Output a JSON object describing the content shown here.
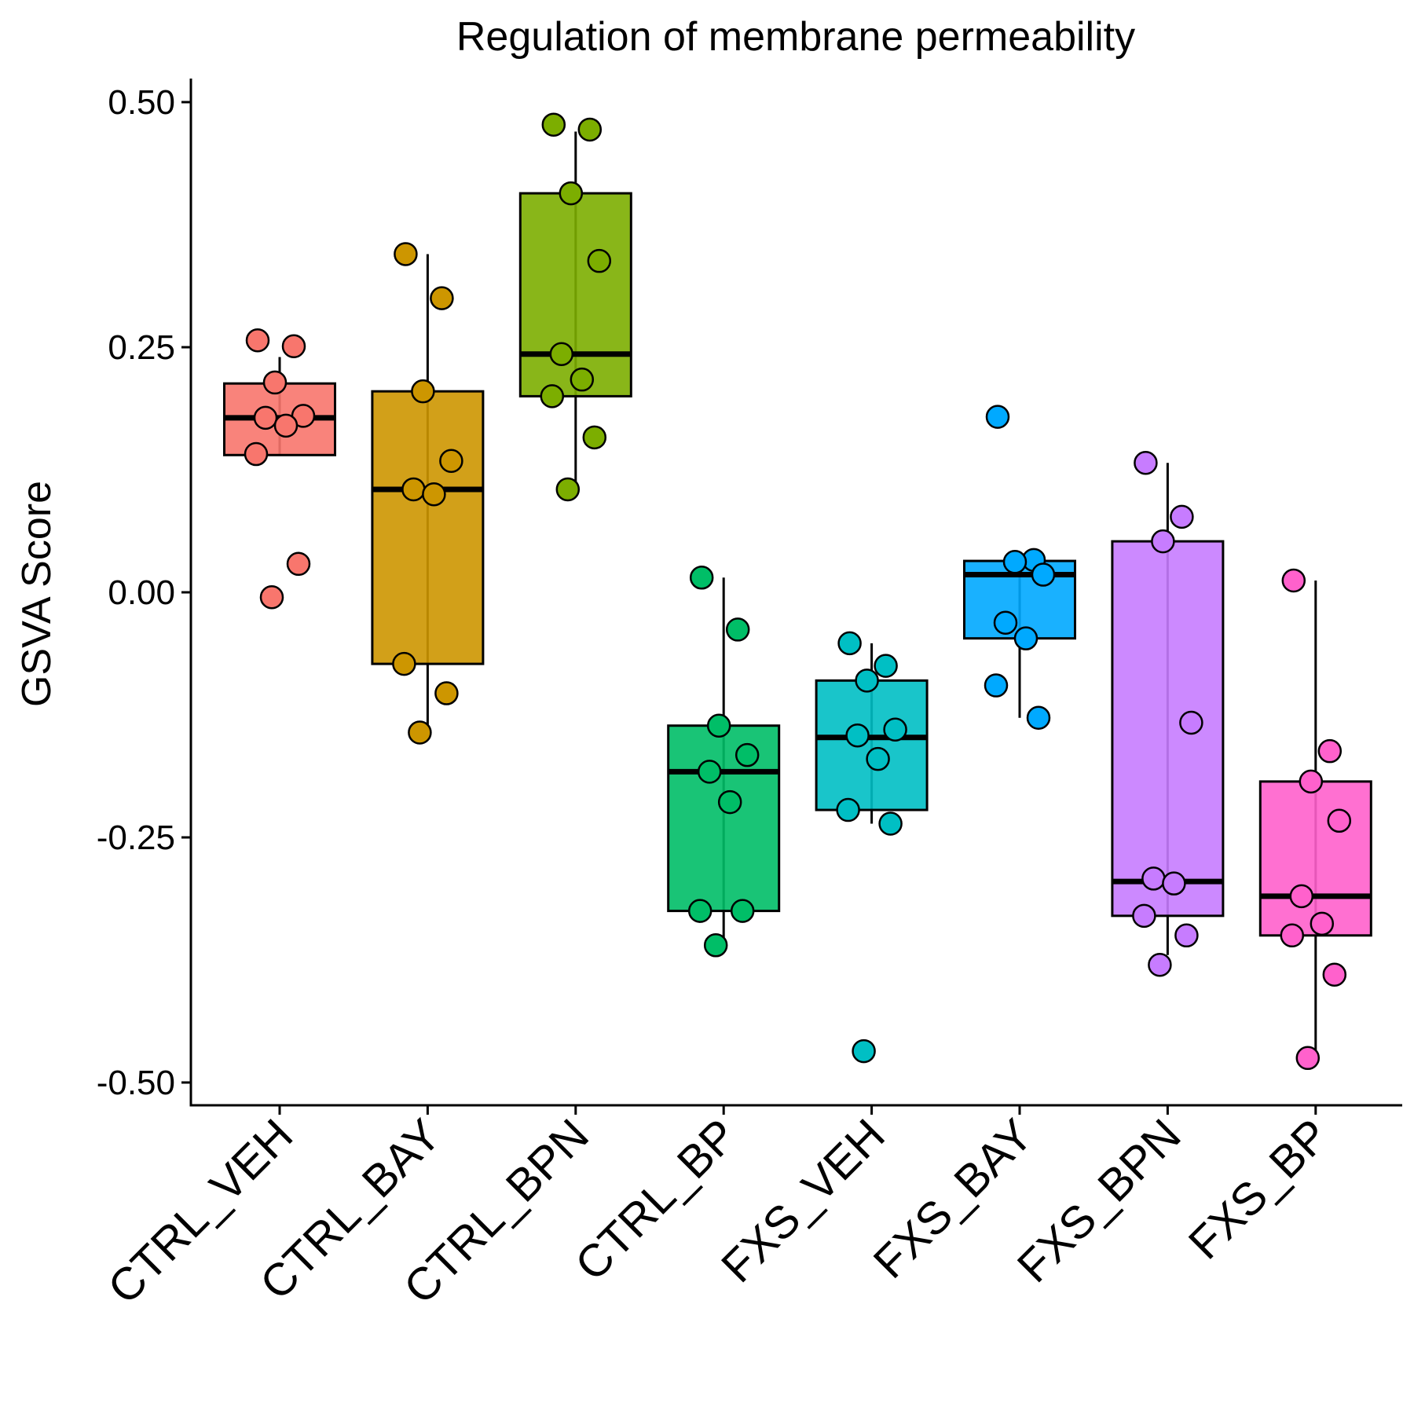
{
  "chart_data": {
    "type": "boxplot",
    "title": "Regulation of membrane permeability",
    "xlabel": "",
    "ylabel": "GSVA Score",
    "ylim": [
      -0.525,
      0.525
    ],
    "yticks": [
      0.5,
      0.25,
      0.0,
      -0.25,
      -0.5
    ],
    "ytick_labels": [
      "0.50",
      "0.25",
      "0.00",
      "-0.25",
      "-0.50"
    ],
    "grid": false,
    "legend": "none",
    "categories": [
      "CTRL_VEH",
      "CTRL_BAY",
      "CTRL_BPN",
      "CTRL_BP",
      "FXS_VEH",
      "FXS_BAY",
      "FXS_BPN",
      "FXS_BP"
    ],
    "colors": [
      "#F8766D",
      "#CD9600",
      "#7CAE00",
      "#00BE67",
      "#00BFC4",
      "#00A9FF",
      "#C77CFF",
      "#FF61CC"
    ],
    "boxes": [
      {
        "whisker_low": 0.14,
        "q1": 0.14,
        "median": 0.178,
        "q3": 0.213,
        "whisker_high": 0.24
      },
      {
        "whisker_low": -0.143,
        "q1": -0.073,
        "median": 0.105,
        "q3": 0.205,
        "whisker_high": 0.345
      },
      {
        "whisker_low": 0.105,
        "q1": 0.2,
        "median": 0.243,
        "q3": 0.407,
        "whisker_high": 0.47
      },
      {
        "whisker_low": -0.36,
        "q1": -0.325,
        "median": -0.183,
        "q3": -0.136,
        "whisker_high": 0.015
      },
      {
        "whisker_low": -0.236,
        "q1": -0.222,
        "median": -0.148,
        "q3": -0.09,
        "whisker_high": -0.052
      },
      {
        "whisker_low": -0.128,
        "q1": -0.047,
        "median": 0.018,
        "q3": 0.032,
        "whisker_high": 0.033
      },
      {
        "whisker_low": -0.37,
        "q1": -0.33,
        "median": -0.295,
        "q3": 0.052,
        "whisker_high": 0.132
      },
      {
        "whisker_low": -0.475,
        "q1": -0.35,
        "median": -0.31,
        "q3": -0.193,
        "whisker_high": 0.012
      }
    ],
    "points": [
      [
        0.257,
        0.251,
        0.214,
        0.18,
        0.178,
        0.17,
        0.141,
        0.029,
        -0.005
      ],
      [
        0.345,
        0.3,
        0.205,
        0.134,
        0.105,
        0.1,
        -0.073,
        -0.103,
        -0.143
      ],
      [
        0.477,
        0.472,
        0.407,
        0.338,
        0.243,
        0.217,
        0.2,
        0.158,
        0.105
      ],
      [
        0.015,
        -0.038,
        -0.136,
        -0.166,
        -0.183,
        -0.214,
        -0.325,
        -0.325,
        -0.36
      ],
      [
        -0.052,
        -0.075,
        -0.09,
        -0.14,
        -0.146,
        -0.17,
        -0.222,
        -0.236,
        -0.468
      ],
      [
        0.179,
        0.033,
        0.031,
        0.018,
        -0.031,
        -0.047,
        -0.095,
        -0.128
      ],
      [
        0.132,
        0.077,
        0.052,
        -0.133,
        -0.292,
        -0.297,
        -0.33,
        -0.35,
        -0.38
      ],
      [
        0.012,
        -0.162,
        -0.193,
        -0.233,
        -0.31,
        -0.338,
        -0.35,
        -0.39,
        -0.475
      ]
    ]
  }
}
